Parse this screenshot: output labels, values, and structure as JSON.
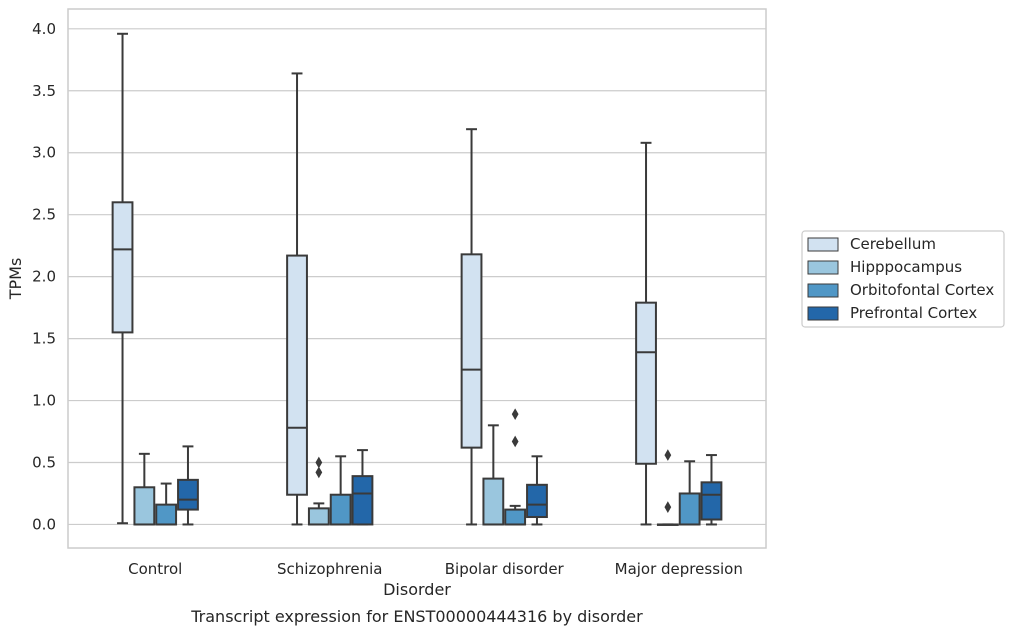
{
  "chart_data": {
    "type": "box",
    "xlabel": "Disorder",
    "ylabel": "TPMs",
    "caption": "Transcript expression for ENST00000444316 by disorder",
    "ylim": [
      -0.19,
      4.16
    ],
    "yticks": [
      0.0,
      0.5,
      1.0,
      1.5,
      2.0,
      2.5,
      3.0,
      3.5,
      4.0
    ],
    "ytick_labels": [
      "0.0",
      "0.5",
      "1.0",
      "1.5",
      "2.0",
      "2.5",
      "3.0",
      "3.5",
      "4.0"
    ],
    "grid": "horizontal",
    "legend_position": "outside-right",
    "categories": [
      "Control",
      "Schizophrenia",
      "Bipolar disorder",
      "Major depression"
    ],
    "series": [
      {
        "name": "Cerebellum",
        "color": "#d2e2f1",
        "boxes": [
          {
            "whislo": 0.01,
            "q1": 1.55,
            "med": 2.22,
            "q3": 2.6,
            "whishi": 3.96,
            "fliers": []
          },
          {
            "whislo": 0.0,
            "q1": 0.24,
            "med": 0.78,
            "q3": 2.17,
            "whishi": 3.64,
            "fliers": []
          },
          {
            "whislo": 0.0,
            "q1": 0.62,
            "med": 1.25,
            "q3": 2.18,
            "whishi": 3.19,
            "fliers": []
          },
          {
            "whislo": 0.0,
            "q1": 0.49,
            "med": 1.39,
            "q3": 1.79,
            "whishi": 3.08,
            "fliers": []
          }
        ]
      },
      {
        "name": "Hipppocampus",
        "color": "#9ac6de",
        "boxes": [
          {
            "whislo": 0.0,
            "q1": 0.0,
            "med": 0.0,
            "q3": 0.3,
            "whishi": 0.57,
            "fliers": []
          },
          {
            "whislo": 0.0,
            "q1": 0.0,
            "med": 0.0,
            "q3": 0.13,
            "whishi": 0.17,
            "fliers": [
              0.42,
              0.5
            ]
          },
          {
            "whislo": 0.0,
            "q1": 0.0,
            "med": 0.0,
            "q3": 0.37,
            "whishi": 0.8,
            "fliers": []
          },
          {
            "whislo": 0.0,
            "q1": 0.0,
            "med": 0.0,
            "q3": 0.0,
            "whishi": 0.0,
            "fliers": [
              0.14,
              0.56
            ]
          }
        ]
      },
      {
        "name": "Orbitofontal Cortex",
        "color": "#5097c6",
        "boxes": [
          {
            "whislo": 0.0,
            "q1": 0.0,
            "med": 0.0,
            "q3": 0.16,
            "whishi": 0.33,
            "fliers": []
          },
          {
            "whislo": 0.0,
            "q1": 0.0,
            "med": 0.0,
            "q3": 0.24,
            "whishi": 0.55,
            "fliers": []
          },
          {
            "whislo": 0.0,
            "q1": 0.0,
            "med": 0.0,
            "q3": 0.12,
            "whishi": 0.15,
            "fliers": [
              0.67,
              0.89
            ]
          },
          {
            "whislo": 0.0,
            "q1": 0.0,
            "med": 0.0,
            "q3": 0.25,
            "whishi": 0.51,
            "fliers": []
          }
        ]
      },
      {
        "name": "Prefrontal Cortex",
        "color": "#2367a9",
        "boxes": [
          {
            "whislo": 0.0,
            "q1": 0.12,
            "med": 0.2,
            "q3": 0.36,
            "whishi": 0.63,
            "fliers": []
          },
          {
            "whislo": 0.0,
            "q1": 0.0,
            "med": 0.25,
            "q3": 0.39,
            "whishi": 0.6,
            "fliers": []
          },
          {
            "whislo": 0.0,
            "q1": 0.06,
            "med": 0.16,
            "q3": 0.32,
            "whishi": 0.55,
            "fliers": []
          },
          {
            "whislo": 0.0,
            "q1": 0.04,
            "med": 0.24,
            "q3": 0.34,
            "whishi": 0.56,
            "fliers": []
          }
        ]
      }
    ],
    "colors": {
      "frame": "#cccccc",
      "grid": "#cccccc",
      "line": "#3a3a3a",
      "text": "#262626"
    }
  }
}
